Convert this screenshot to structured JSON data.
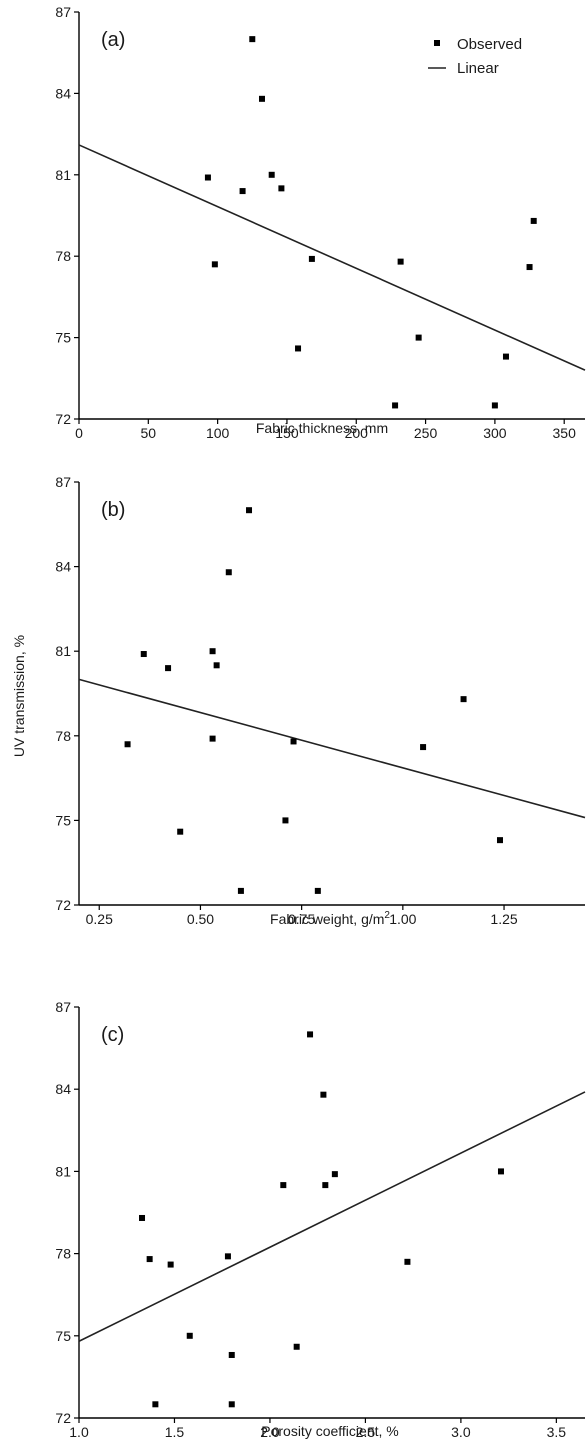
{
  "chart_data": [
    {
      "type": "scatter",
      "panel_label": "(a)",
      "xlabel": "Fabric thickness, mm",
      "ylabel": "",
      "xlim": [
        0,
        365
      ],
      "ylim": [
        72,
        87
      ],
      "x_ticks": [
        0,
        50,
        100,
        150,
        200,
        250,
        300,
        350
      ],
      "y_ticks": [
        72,
        75,
        78,
        81,
        84,
        87
      ],
      "legend": {
        "position": "top-right",
        "entries": [
          "Observed",
          "Linear"
        ]
      },
      "series": [
        {
          "name": "Observed",
          "points": [
            [
              93,
              80.9
            ],
            [
              98,
              77.7
            ],
            [
              118,
              80.4
            ],
            [
              125,
              86.0
            ],
            [
              132,
              83.8
            ],
            [
              139,
              81.0
            ],
            [
              146,
              80.5
            ],
            [
              158,
              74.6
            ],
            [
              168,
              77.9
            ],
            [
              228,
              72.5
            ],
            [
              232,
              77.8
            ],
            [
              245,
              75.0
            ],
            [
              300,
              72.5
            ],
            [
              308,
              74.3
            ],
            [
              325,
              77.6
            ],
            [
              328,
              79.3
            ]
          ]
        },
        {
          "name": "Linear",
          "line": [
            [
              0,
              82.1
            ],
            [
              365,
              73.8
            ]
          ]
        }
      ]
    },
    {
      "type": "scatter",
      "panel_label": "(b)",
      "xlabel": "Fabric weight, g/m",
      "xlabel_sup": "2",
      "ylabel": "UV transmission, %",
      "xlim": [
        0.2,
        1.45
      ],
      "ylim": [
        72,
        87
      ],
      "x_ticks": [
        "0.25",
        "0.50",
        "0.75",
        "1.00",
        "1.25"
      ],
      "y_ticks": [
        72,
        75,
        78,
        81,
        84,
        87
      ],
      "series": [
        {
          "name": "Observed",
          "points": [
            [
              0.32,
              77.7
            ],
            [
              0.36,
              80.9
            ],
            [
              0.42,
              80.4
            ],
            [
              0.45,
              74.6
            ],
            [
              0.53,
              81.0
            ],
            [
              0.53,
              77.9
            ],
            [
              0.54,
              80.5
            ],
            [
              0.57,
              83.8
            ],
            [
              0.6,
              72.5
            ],
            [
              0.62,
              86.0
            ],
            [
              0.71,
              75.0
            ],
            [
              0.73,
              77.8
            ],
            [
              0.79,
              72.5
            ],
            [
              1.05,
              77.6
            ],
            [
              1.15,
              79.3
            ],
            [
              1.24,
              74.3
            ]
          ]
        },
        {
          "name": "Linear",
          "line": [
            [
              0.2,
              80.0
            ],
            [
              1.45,
              75.1
            ]
          ]
        }
      ]
    },
    {
      "type": "scatter",
      "panel_label": "(c)",
      "xlabel": "Porosity coefficient, %",
      "ylabel": "",
      "xlim": [
        1.0,
        3.65
      ],
      "ylim": [
        72,
        87
      ],
      "x_ticks": [
        "1.0",
        "1.5",
        "2.0",
        "2.5",
        "3.0",
        "3.5"
      ],
      "y_ticks": [
        72,
        75,
        78,
        81,
        84,
        87
      ],
      "series": [
        {
          "name": "Observed",
          "points": [
            [
              1.33,
              79.3
            ],
            [
              1.37,
              77.8
            ],
            [
              1.4,
              72.5
            ],
            [
              1.48,
              77.6
            ],
            [
              1.58,
              75.0
            ],
            [
              1.78,
              77.9
            ],
            [
              1.8,
              74.3
            ],
            [
              1.8,
              72.5
            ],
            [
              2.07,
              80.5
            ],
            [
              2.14,
              74.6
            ],
            [
              2.21,
              86.0
            ],
            [
              2.28,
              83.8
            ],
            [
              2.29,
              80.5
            ],
            [
              2.34,
              80.9
            ],
            [
              2.72,
              77.7
            ],
            [
              3.21,
              81.0
            ]
          ]
        },
        {
          "name": "Linear",
          "line": [
            [
              1.0,
              74.8
            ],
            [
              3.65,
              83.9
            ]
          ]
        }
      ]
    }
  ]
}
